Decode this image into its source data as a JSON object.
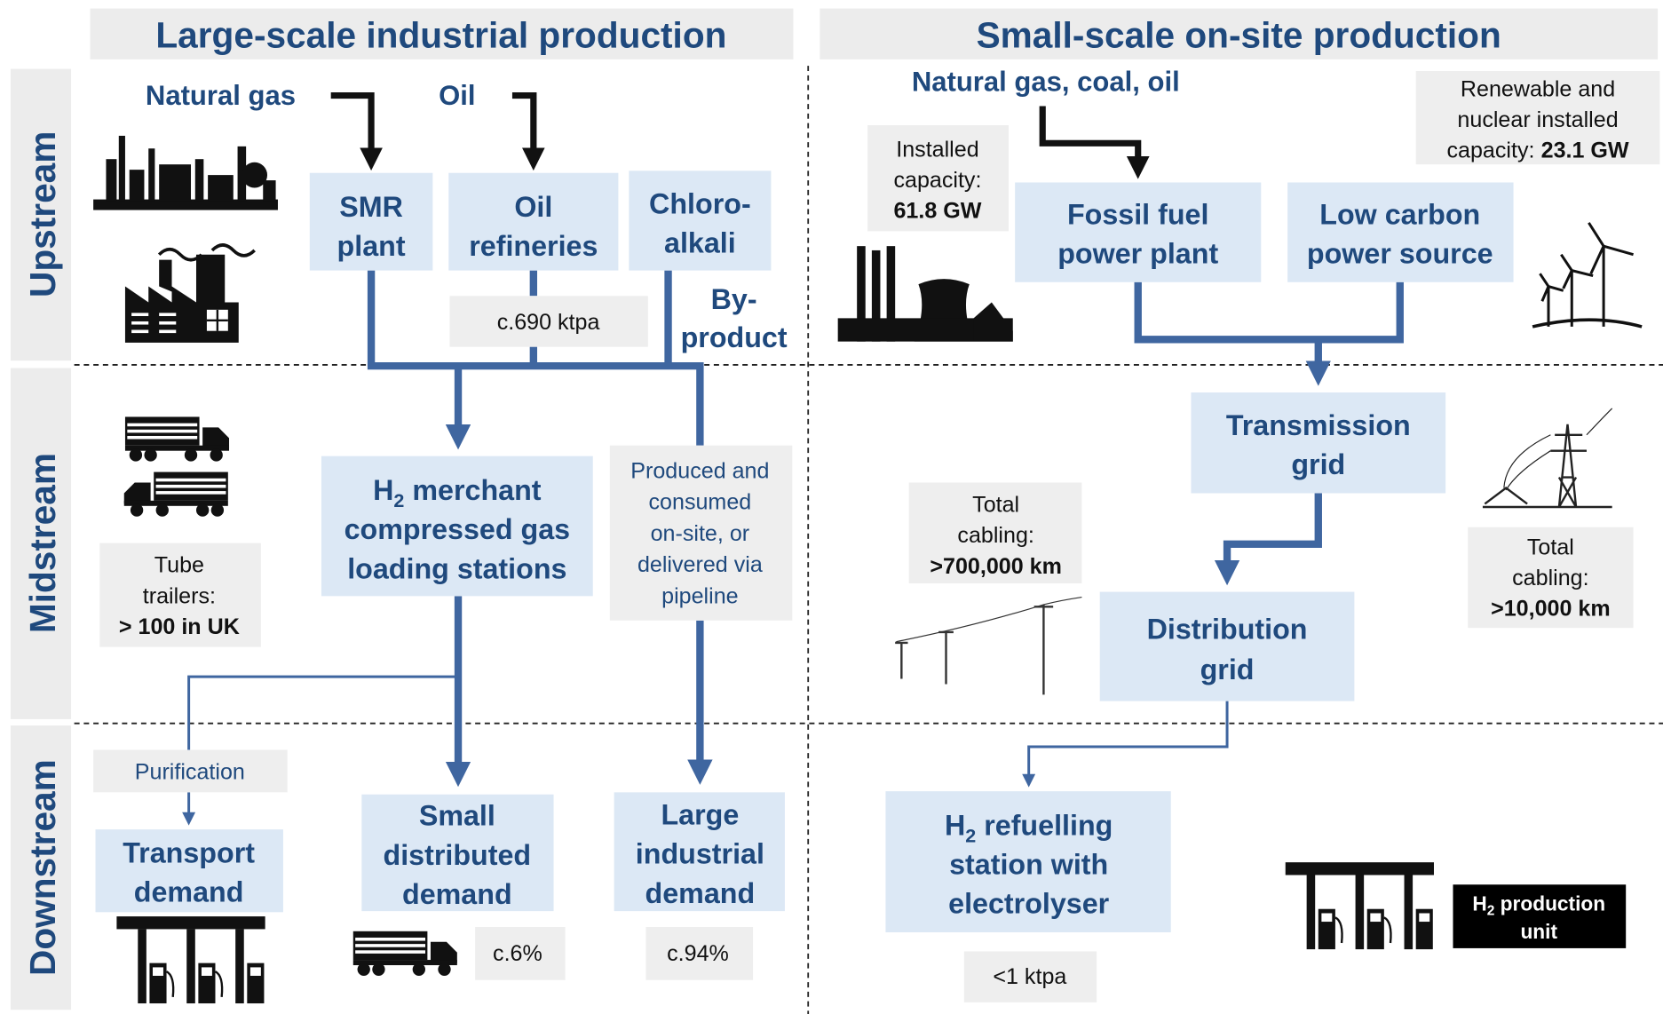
{
  "header": {
    "left": "Large-scale industrial production",
    "right": "Small-scale on-site production"
  },
  "stages": [
    "Upstream",
    "Midstream",
    "Downstream"
  ],
  "inputs": {
    "natural_gas": "Natural gas",
    "oil": "Oil",
    "fossil_fuels": "Natural gas, coal, oil"
  },
  "nodes": {
    "smr": [
      "SMR",
      "plant"
    ],
    "oil_refineries": [
      "Oil",
      "refineries"
    ],
    "chlor_alkali": [
      "Chloro-",
      "alkali"
    ],
    "by_product": [
      "By-",
      "product"
    ],
    "merchant_stations": [
      {
        "text": "H",
        "sub": "2",
        "rest": " merchant"
      },
      "compressed gas",
      "loading stations"
    ],
    "transport_demand": [
      "Transport",
      "demand"
    ],
    "small_demand": [
      "Small",
      "distributed",
      "demand"
    ],
    "large_demand": [
      "Large",
      "industrial",
      "demand"
    ],
    "fossil_plant": [
      "Fossil fuel",
      "power plant"
    ],
    "low_carbon": [
      "Low carbon",
      "power source"
    ],
    "transmission_grid": [
      "Transmission",
      "grid"
    ],
    "distribution_grid": [
      "Distribution",
      "grid"
    ],
    "refuelling_station": [
      {
        "text": "H",
        "sub": "2",
        "rest": " refuelling"
      },
      "station with",
      "electrolyser"
    ]
  },
  "notes": {
    "refinery_output": "c.690 ktpa",
    "produced_on_site": [
      "Produced and",
      "consumed",
      "on-site, or",
      "delivered via",
      "pipeline"
    ],
    "tube_trailers": {
      "lines": [
        "Tube",
        "trailers:"
      ],
      "value": "> 100 in UK"
    },
    "purification": "Purification",
    "small_share": "c.6%",
    "large_share": "c.94%",
    "fossil_capacity": {
      "lines": [
        "Installed",
        "capacity:"
      ],
      "value": "61.8 GW"
    },
    "low_carbon_capacity": {
      "lines": [
        "Renewable and",
        "nuclear installed",
        "capacity:"
      ],
      "value": "23.1 GW"
    },
    "distribution_cabling": {
      "lines": [
        "Total",
        "cabling:"
      ],
      "value": ">700,000 km"
    },
    "transmission_cabling": {
      "lines": [
        "Total",
        "cabling:"
      ],
      "value": ">10,000 km"
    },
    "refuelling_output": "<1 ktpa",
    "production_unit": [
      {
        "text": "H",
        "sub": "2",
        "rest": " production"
      },
      "unit"
    ]
  }
}
